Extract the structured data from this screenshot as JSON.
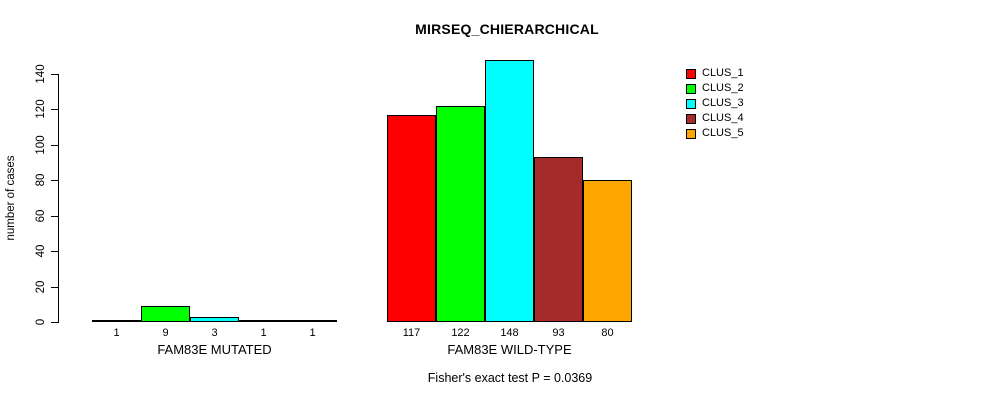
{
  "chart_data": {
    "type": "bar",
    "title": "MIRSEQ_CHIERARCHICAL",
    "ylabel": "number of cases",
    "xlabel": "",
    "ylim": [
      0,
      140
    ],
    "yticks": [
      0,
      20,
      40,
      60,
      80,
      100,
      120,
      140
    ],
    "grid": false,
    "legend_position": "top-right",
    "bar_border_color": "#000000",
    "categories": [
      "FAM83E MUTATED",
      "FAM83E WILD-TYPE"
    ],
    "series": [
      {
        "name": "CLUS_1",
        "color": "#ff0000",
        "values": [
          1,
          117
        ]
      },
      {
        "name": "CLUS_2",
        "color": "#00ff00",
        "values": [
          9,
          122
        ]
      },
      {
        "name": "CLUS_3",
        "color": "#00ffff",
        "values": [
          3,
          148
        ]
      },
      {
        "name": "CLUS_4",
        "color": "#a52a2a",
        "values": [
          1,
          93
        ]
      },
      {
        "name": "CLUS_5",
        "color": "#ffa500",
        "values": [
          1,
          80
        ]
      }
    ],
    "bar_value_labels": [
      [
        1,
        9,
        3,
        1,
        1
      ],
      [
        117,
        122,
        148,
        93,
        80
      ]
    ],
    "footnote": "Fisher's exact test P = 0.0369"
  }
}
